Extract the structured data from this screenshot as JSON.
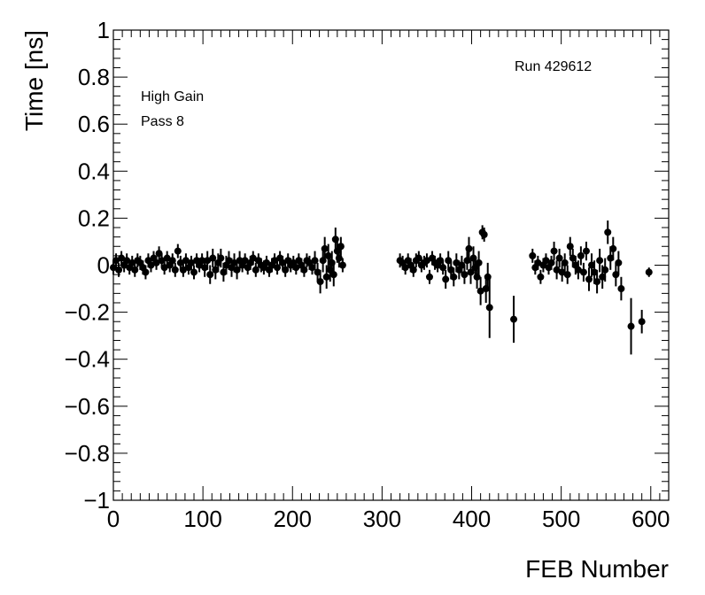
{
  "chart_data": {
    "type": "scatter",
    "xlabel": "FEB Number",
    "ylabel": "Time [ns]",
    "xlim": [
      0,
      620
    ],
    "ylim": [
      -1,
      1
    ],
    "x_ticks": [
      0,
      100,
      200,
      300,
      400,
      500,
      600
    ],
    "y_ticks": [
      -1,
      -0.8,
      -0.6,
      -0.4,
      -0.2,
      0,
      0.2,
      0.4,
      0.6,
      0.8,
      1
    ],
    "x_tick_labels": [
      "0",
      "100",
      "200",
      "300",
      "400",
      "500",
      "600"
    ],
    "y_tick_labels": [
      "−1",
      "−0.8",
      "−0.6",
      "−0.4",
      "−0.2",
      "0",
      "0.2",
      "0.4",
      "0.6",
      "0.8",
      "1"
    ],
    "grid": false,
    "error_bars": true,
    "marker_color": "#000000",
    "annotations": {
      "run": "Run 429612",
      "gain": "High Gain",
      "pass": "Pass 8"
    },
    "series": [
      {
        "points": [
          {
            "x": 0,
            "y": -0.01,
            "err": 0.03
          },
          {
            "x": 3,
            "y": 0.02,
            "err": 0.03
          },
          {
            "x": 6,
            "y": -0.02,
            "err": 0.03
          },
          {
            "x": 9,
            "y": 0.03,
            "err": 0.03
          },
          {
            "x": 12,
            "y": 0.0,
            "err": 0.03
          },
          {
            "x": 15,
            "y": 0.02,
            "err": 0.03
          },
          {
            "x": 18,
            "y": -0.01,
            "err": 0.03
          },
          {
            "x": 21,
            "y": 0.01,
            "err": 0.03
          },
          {
            "x": 24,
            "y": -0.02,
            "err": 0.03
          },
          {
            "x": 27,
            "y": 0.02,
            "err": 0.03
          },
          {
            "x": 30,
            "y": 0.01,
            "err": 0.03
          },
          {
            "x": 33,
            "y": -0.01,
            "err": 0.03
          },
          {
            "x": 36,
            "y": -0.03,
            "err": 0.03
          },
          {
            "x": 39,
            "y": 0.02,
            "err": 0.03
          },
          {
            "x": 42,
            "y": 0.0,
            "err": 0.03
          },
          {
            "x": 45,
            "y": 0.03,
            "err": 0.03
          },
          {
            "x": 48,
            "y": 0.01,
            "err": 0.03
          },
          {
            "x": 51,
            "y": 0.05,
            "err": 0.03
          },
          {
            "x": 54,
            "y": 0.02,
            "err": 0.03
          },
          {
            "x": 57,
            "y": -0.01,
            "err": 0.03
          },
          {
            "x": 60,
            "y": 0.03,
            "err": 0.03
          },
          {
            "x": 63,
            "y": 0.0,
            "err": 0.03
          },
          {
            "x": 66,
            "y": 0.02,
            "err": 0.03
          },
          {
            "x": 69,
            "y": -0.02,
            "err": 0.03
          },
          {
            "x": 72,
            "y": 0.06,
            "err": 0.03
          },
          {
            "x": 75,
            "y": 0.01,
            "err": 0.03
          },
          {
            "x": 78,
            "y": -0.02,
            "err": 0.03
          },
          {
            "x": 81,
            "y": 0.02,
            "err": 0.03
          },
          {
            "x": 84,
            "y": -0.01,
            "err": 0.03
          },
          {
            "x": 87,
            "y": 0.01,
            "err": 0.03
          },
          {
            "x": 90,
            "y": -0.03,
            "err": 0.03
          },
          {
            "x": 93,
            "y": 0.02,
            "err": 0.03
          },
          {
            "x": 96,
            "y": 0.0,
            "err": 0.03
          },
          {
            "x": 99,
            "y": 0.02,
            "err": 0.03
          },
          {
            "x": 102,
            "y": -0.01,
            "err": 0.04
          },
          {
            "x": 105,
            "y": 0.02,
            "err": 0.04
          },
          {
            "x": 108,
            "y": -0.04,
            "err": 0.04
          },
          {
            "x": 111,
            "y": 0.03,
            "err": 0.04
          },
          {
            "x": 114,
            "y": -0.02,
            "err": 0.04
          },
          {
            "x": 117,
            "y": 0.01,
            "err": 0.04
          },
          {
            "x": 120,
            "y": 0.03,
            "err": 0.04
          },
          {
            "x": 123,
            "y": -0.03,
            "err": 0.04
          },
          {
            "x": 126,
            "y": 0.0,
            "err": 0.04
          },
          {
            "x": 129,
            "y": 0.02,
            "err": 0.04
          },
          {
            "x": 132,
            "y": -0.01,
            "err": 0.04
          },
          {
            "x": 135,
            "y": 0.01,
            "err": 0.04
          },
          {
            "x": 138,
            "y": -0.02,
            "err": 0.04
          },
          {
            "x": 141,
            "y": 0.02,
            "err": 0.04
          },
          {
            "x": 144,
            "y": 0.0,
            "err": 0.03
          },
          {
            "x": 147,
            "y": 0.02,
            "err": 0.03
          },
          {
            "x": 150,
            "y": -0.01,
            "err": 0.03
          },
          {
            "x": 153,
            "y": 0.01,
            "err": 0.03
          },
          {
            "x": 156,
            "y": 0.03,
            "err": 0.03
          },
          {
            "x": 159,
            "y": -0.02,
            "err": 0.03
          },
          {
            "x": 162,
            "y": 0.02,
            "err": 0.03
          },
          {
            "x": 165,
            "y": 0.0,
            "err": 0.03
          },
          {
            "x": 168,
            "y": -0.01,
            "err": 0.03
          },
          {
            "x": 171,
            "y": 0.01,
            "err": 0.03
          },
          {
            "x": 174,
            "y": -0.02,
            "err": 0.03
          },
          {
            "x": 177,
            "y": 0.0,
            "err": 0.03
          },
          {
            "x": 180,
            "y": 0.02,
            "err": 0.03
          },
          {
            "x": 183,
            "y": -0.01,
            "err": 0.03
          },
          {
            "x": 186,
            "y": 0.03,
            "err": 0.03
          },
          {
            "x": 189,
            "y": 0.01,
            "err": 0.03
          },
          {
            "x": 192,
            "y": -0.02,
            "err": 0.03
          },
          {
            "x": 195,
            "y": 0.02,
            "err": 0.03
          },
          {
            "x": 198,
            "y": 0.0,
            "err": 0.03
          },
          {
            "x": 201,
            "y": 0.01,
            "err": 0.03
          },
          {
            "x": 204,
            "y": -0.01,
            "err": 0.03
          },
          {
            "x": 207,
            "y": 0.02,
            "err": 0.03
          },
          {
            "x": 210,
            "y": 0.0,
            "err": 0.03
          },
          {
            "x": 213,
            "y": -0.02,
            "err": 0.03
          },
          {
            "x": 216,
            "y": 0.02,
            "err": 0.03
          },
          {
            "x": 219,
            "y": 0.01,
            "err": 0.03
          },
          {
            "x": 222,
            "y": -0.01,
            "err": 0.03
          },
          {
            "x": 225,
            "y": 0.02,
            "err": 0.04
          },
          {
            "x": 228,
            "y": -0.03,
            "err": 0.04
          },
          {
            "x": 231,
            "y": -0.07,
            "err": 0.05
          },
          {
            "x": 234,
            "y": 0.02,
            "err": 0.05
          },
          {
            "x": 236,
            "y": 0.07,
            "err": 0.05
          },
          {
            "x": 238,
            "y": -0.05,
            "err": 0.05
          },
          {
            "x": 240,
            "y": 0.04,
            "err": 0.05
          },
          {
            "x": 242,
            "y": -0.02,
            "err": 0.05
          },
          {
            "x": 244,
            "y": 0.01,
            "err": 0.05
          },
          {
            "x": 246,
            "y": -0.04,
            "err": 0.05
          },
          {
            "x": 248,
            "y": 0.11,
            "err": 0.05
          },
          {
            "x": 250,
            "y": 0.06,
            "err": 0.05
          },
          {
            "x": 252,
            "y": 0.03,
            "err": 0.04
          },
          {
            "x": 254,
            "y": 0.08,
            "err": 0.04
          },
          {
            "x": 256,
            "y": 0.0,
            "err": 0.03
          },
          {
            "x": 320,
            "y": 0.02,
            "err": 0.03
          },
          {
            "x": 323,
            "y": 0.01,
            "err": 0.03
          },
          {
            "x": 326,
            "y": -0.01,
            "err": 0.03
          },
          {
            "x": 329,
            "y": 0.02,
            "err": 0.03
          },
          {
            "x": 332,
            "y": 0.0,
            "err": 0.03
          },
          {
            "x": 335,
            "y": -0.02,
            "err": 0.03
          },
          {
            "x": 338,
            "y": 0.02,
            "err": 0.03
          },
          {
            "x": 341,
            "y": 0.03,
            "err": 0.03
          },
          {
            "x": 344,
            "y": 0.0,
            "err": 0.03
          },
          {
            "x": 347,
            "y": 0.01,
            "err": 0.03
          },
          {
            "x": 350,
            "y": 0.02,
            "err": 0.03
          },
          {
            "x": 353,
            "y": -0.05,
            "err": 0.03
          },
          {
            "x": 356,
            "y": 0.03,
            "err": 0.03
          },
          {
            "x": 359,
            "y": 0.01,
            "err": 0.03
          },
          {
            "x": 362,
            "y": 0.0,
            "err": 0.03
          },
          {
            "x": 365,
            "y": 0.02,
            "err": 0.03
          },
          {
            "x": 368,
            "y": -0.01,
            "err": 0.03
          },
          {
            "x": 371,
            "y": -0.06,
            "err": 0.04
          },
          {
            "x": 374,
            "y": 0.02,
            "err": 0.04
          },
          {
            "x": 377,
            "y": -0.02,
            "err": 0.04
          },
          {
            "x": 380,
            "y": -0.05,
            "err": 0.04
          },
          {
            "x": 383,
            "y": 0.01,
            "err": 0.04
          },
          {
            "x": 386,
            "y": -0.02,
            "err": 0.04
          },
          {
            "x": 389,
            "y": 0.0,
            "err": 0.04
          },
          {
            "x": 392,
            "y": -0.04,
            "err": 0.04
          },
          {
            "x": 395,
            "y": 0.02,
            "err": 0.04
          },
          {
            "x": 397,
            "y": 0.07,
            "err": 0.05
          },
          {
            "x": 399,
            "y": -0.03,
            "err": 0.05
          },
          {
            "x": 402,
            "y": 0.03,
            "err": 0.05
          },
          {
            "x": 404,
            "y": -0.01,
            "err": 0.05
          },
          {
            "x": 406,
            "y": -0.05,
            "err": 0.05
          },
          {
            "x": 408,
            "y": 0.01,
            "err": 0.05
          },
          {
            "x": 410,
            "y": -0.11,
            "err": 0.06
          },
          {
            "x": 412,
            "y": 0.14,
            "err": 0.03
          },
          {
            "x": 414,
            "y": 0.13,
            "err": 0.03
          },
          {
            "x": 416,
            "y": -0.1,
            "err": 0.06
          },
          {
            "x": 418,
            "y": -0.05,
            "err": 0.06
          },
          {
            "x": 420,
            "y": -0.18,
            "err": 0.13
          },
          {
            "x": 447,
            "y": -0.23,
            "err": 0.1
          },
          {
            "x": 468,
            "y": 0.04,
            "err": 0.03
          },
          {
            "x": 471,
            "y": -0.01,
            "err": 0.03
          },
          {
            "x": 474,
            "y": 0.01,
            "err": 0.03
          },
          {
            "x": 477,
            "y": -0.05,
            "err": 0.03
          },
          {
            "x": 480,
            "y": 0.0,
            "err": 0.03
          },
          {
            "x": 483,
            "y": 0.02,
            "err": 0.03
          },
          {
            "x": 486,
            "y": -0.01,
            "err": 0.03
          },
          {
            "x": 489,
            "y": 0.01,
            "err": 0.03
          },
          {
            "x": 492,
            "y": 0.06,
            "err": 0.04
          },
          {
            "x": 495,
            "y": -0.02,
            "err": 0.04
          },
          {
            "x": 498,
            "y": 0.03,
            "err": 0.04
          },
          {
            "x": 501,
            "y": -0.03,
            "err": 0.04
          },
          {
            "x": 504,
            "y": 0.01,
            "err": 0.04
          },
          {
            "x": 507,
            "y": -0.04,
            "err": 0.04
          },
          {
            "x": 510,
            "y": 0.08,
            "err": 0.04
          },
          {
            "x": 513,
            "y": 0.03,
            "err": 0.04
          },
          {
            "x": 516,
            "y": 0.0,
            "err": 0.04
          },
          {
            "x": 519,
            "y": -0.02,
            "err": 0.04
          },
          {
            "x": 522,
            "y": 0.04,
            "err": 0.04
          },
          {
            "x": 525,
            "y": -0.03,
            "err": 0.04
          },
          {
            "x": 528,
            "y": 0.06,
            "err": 0.04
          },
          {
            "x": 531,
            "y": -0.06,
            "err": 0.05
          },
          {
            "x": 534,
            "y": 0.0,
            "err": 0.05
          },
          {
            "x": 537,
            "y": -0.03,
            "err": 0.05
          },
          {
            "x": 540,
            "y": -0.07,
            "err": 0.05
          },
          {
            "x": 543,
            "y": 0.02,
            "err": 0.05
          },
          {
            "x": 546,
            "y": -0.05,
            "err": 0.05
          },
          {
            "x": 549,
            "y": -0.02,
            "err": 0.05
          },
          {
            "x": 552,
            "y": 0.14,
            "err": 0.05
          },
          {
            "x": 555,
            "y": 0.03,
            "err": 0.05
          },
          {
            "x": 558,
            "y": 0.07,
            "err": 0.05
          },
          {
            "x": 561,
            "y": -0.04,
            "err": 0.05
          },
          {
            "x": 564,
            "y": 0.01,
            "err": 0.05
          },
          {
            "x": 567,
            "y": -0.1,
            "err": 0.05
          },
          {
            "x": 578,
            "y": -0.26,
            "err": 0.12
          },
          {
            "x": 590,
            "y": -0.24,
            "err": 0.05
          },
          {
            "x": 598,
            "y": -0.03,
            "err": 0.02
          }
        ]
      }
    ]
  }
}
